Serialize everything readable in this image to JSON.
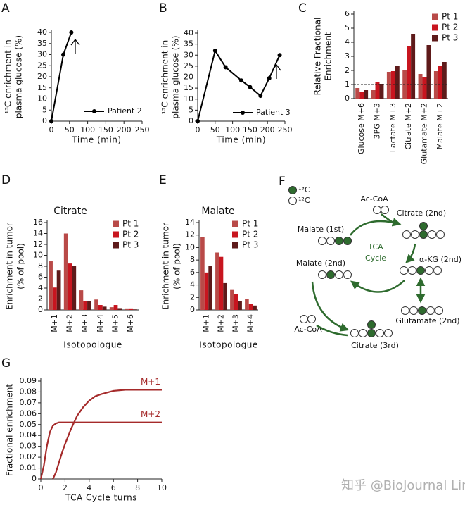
{
  "chart_data": [
    {
      "label": "A",
      "type": "line",
      "xlabel": "Time (min)",
      "ylabel": [
        "¹³C enrichment in",
        "plasma glucose (%)"
      ],
      "x": [
        0,
        33,
        55
      ],
      "series": [
        {
          "name": "Patient 2",
          "color": "#000000",
          "values": [
            0,
            30,
            40
          ]
        }
      ],
      "xlim": [
        0,
        250
      ],
      "xticks": [
        0,
        50,
        100,
        150,
        200,
        250
      ],
      "ylim": [
        0,
        40
      ],
      "yticks": [
        0,
        5,
        10,
        15,
        20,
        25,
        30,
        35,
        40
      ],
      "markers": true,
      "legend": "lower right"
    },
    {
      "label": "B",
      "type": "line",
      "xlabel": "Time (min)",
      "ylabel": [
        "¹³C enrichment in",
        "plasma glucose (%)"
      ],
      "x": [
        0,
        50,
        80,
        125,
        150,
        180,
        205,
        235
      ],
      "series": [
        {
          "name": "Patient 3",
          "color": "#000000",
          "values": [
            0,
            32,
            24.5,
            18.5,
            15.5,
            11.5,
            19.5,
            30
          ]
        }
      ],
      "xlim": [
        0,
        250
      ],
      "xticks": [
        0,
        50,
        100,
        150,
        200,
        250
      ],
      "ylim": [
        0,
        40
      ],
      "yticks": [
        0,
        5,
        10,
        15,
        20,
        25,
        30,
        35,
        40
      ],
      "markers": true,
      "legend": "lower right"
    },
    {
      "label": "C",
      "type": "bar",
      "ylabel": [
        "Relative Fractional",
        "Enrichment"
      ],
      "categories": [
        "Glucose M+6",
        "3PG M+3",
        "Lactate M+3",
        "Citrate M+2",
        "Glutamate M+2",
        "Malate M+2"
      ],
      "series": [
        {
          "name": "Pt 1",
          "color": "#b94a48",
          "values": [
            0.75,
            0.6,
            1.9,
            2.0,
            1.75,
            1.95
          ]
        },
        {
          "name": "Pt 2",
          "color": "#c8151f",
          "values": [
            0.5,
            1.2,
            1.95,
            3.7,
            1.5,
            2.3
          ]
        },
        {
          "name": "Pt 3",
          "color": "#5e1a1a",
          "values": [
            0.6,
            1.05,
            2.3,
            4.6,
            3.8,
            2.6
          ]
        }
      ],
      "ylim": [
        0,
        6
      ],
      "yticks": [
        0,
        1,
        2,
        3,
        4,
        5,
        6
      ],
      "reference_line": 1,
      "legend": "upper right"
    },
    {
      "label": "D",
      "type": "bar",
      "title": "Citrate",
      "xlabel": "Isotopologue",
      "ylabel": [
        "Enrichment in tumor",
        "(% of pool)"
      ],
      "categories": [
        "M+1",
        "M+2",
        "M+3",
        "M+4",
        "M+5",
        "M+6"
      ],
      "series": [
        {
          "name": "Pt 1",
          "color": "#b94a48",
          "values": [
            8.9,
            14,
            3.6,
            1.9,
            0.5,
            0.15
          ]
        },
        {
          "name": "Pt 2",
          "color": "#c8151f",
          "values": [
            4.1,
            8.5,
            1.6,
            0.9,
            0.9,
            0.15
          ]
        },
        {
          "name": "Pt 3",
          "color": "#5e1a1a",
          "values": [
            7.2,
            8,
            1.6,
            0.6,
            0.2,
            0.1
          ]
        }
      ],
      "ylim": [
        0,
        16
      ],
      "yticks": [
        0,
        2,
        4,
        6,
        8,
        10,
        12,
        14,
        16
      ],
      "legend": "upper right"
    },
    {
      "label": "E",
      "type": "bar",
      "title": "Malate",
      "xlabel": "Isotopologue",
      "ylabel": [
        "Enrichment in tumor",
        "(% of pool)"
      ],
      "categories": [
        "M+1",
        "M+2",
        "M+3",
        "M+4"
      ],
      "series": [
        {
          "name": "Pt 1",
          "color": "#b94a48",
          "values": [
            11.7,
            9.2,
            3.2,
            1.8
          ]
        },
        {
          "name": "Pt 2",
          "color": "#c8151f",
          "values": [
            6,
            8.5,
            2.5,
            1
          ]
        },
        {
          "name": "Pt 3",
          "color": "#5e1a1a",
          "values": [
            7,
            4.3,
            1.4,
            0.7
          ]
        }
      ],
      "ylim": [
        0,
        14
      ],
      "yticks": [
        0,
        2,
        4,
        6,
        8,
        10,
        12,
        14
      ],
      "legend": "upper right"
    },
    {
      "label": "G",
      "type": "line",
      "xlabel": "TCA Cycle turns",
      "ylabel": [
        "Fractional enrichment"
      ],
      "x": [
        0,
        0.25,
        0.5,
        0.75,
        1,
        1.25,
        1.5,
        1.75,
        2,
        2.5,
        3,
        3.5,
        4,
        4.5,
        5,
        6,
        7,
        8,
        9,
        10
      ],
      "series": [
        {
          "name": "M+1",
          "color": "#a52a2a",
          "values": [
            null,
            null,
            null,
            null,
            0,
            0.006,
            0.015,
            0.024,
            0.032,
            0.046,
            0.058,
            0.066,
            0.072,
            0.076,
            0.078,
            0.081,
            0.082,
            0.082,
            0.082,
            0.082
          ]
        },
        {
          "name": "M+2",
          "color": "#a52a2a",
          "values": [
            0,
            0.012,
            0.03,
            0.043,
            0.049,
            0.051,
            0.052,
            0.052,
            0.052,
            0.052,
            0.052,
            0.052,
            0.052,
            0.052,
            0.052,
            0.052,
            0.052,
            0.052,
            0.052,
            0.052
          ]
        }
      ],
      "xlim": [
        0,
        10
      ],
      "xticks": [
        0,
        2,
        4,
        6,
        8,
        10
      ],
      "ylim": [
        0,
        0.09
      ],
      "yticks": [
        0,
        0.01,
        0.02,
        0.03,
        0.04,
        0.05,
        0.06,
        0.07,
        0.08,
        0.09
      ]
    }
  ],
  "diagram": {
    "label": "F",
    "legend": [
      "¹³C",
      "¹²C"
    ],
    "cycle_label": [
      "TCA",
      "Cycle"
    ],
    "nodes": [
      "Ac-CoA",
      "Citrate (2nd)",
      "Malate (1st)",
      "α-KG (2nd)",
      "Malate (2nd)",
      "Glutamate (2nd)",
      "Ac-CoA",
      "Citrate (3rd)"
    ]
  },
  "watermark": "知乎 @BioJournal Link"
}
